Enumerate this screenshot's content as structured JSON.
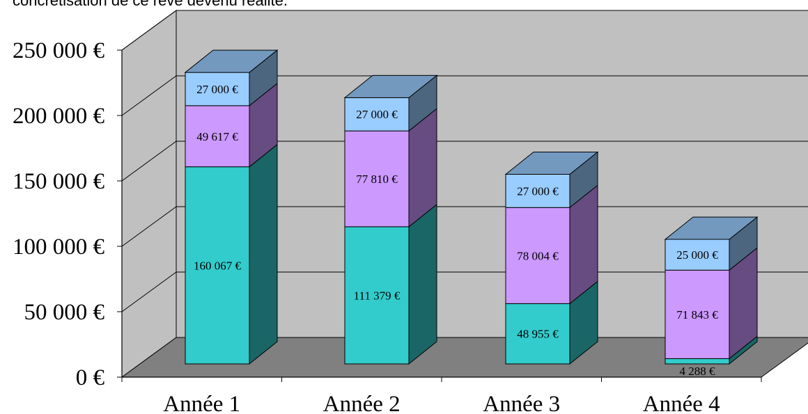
{
  "caption": "concrétisation de ce rêve devenu réalité.",
  "chart_data": {
    "type": "bar",
    "stacked": true,
    "style": "3d",
    "categories": [
      "Année 1",
      "Année 2",
      "Année 3",
      "Année 4"
    ],
    "series": [
      {
        "values": [
          160067,
          111379,
          48955,
          4288
        ],
        "labels": [
          "160 067 €",
          "111 379 €",
          "48 955 €",
          "4 288 €"
        ],
        "color": "#33CCCC",
        "side_color": "#1A6666",
        "top_color": "#2AA3A3"
      },
      {
        "values": [
          49617,
          77810,
          78004,
          71843
        ],
        "labels": [
          "49 617 €",
          "77 810 €",
          "78 004 €",
          "71 843 €"
        ],
        "color": "#CC99FF",
        "side_color": "#664C80",
        "top_color": "#A67ACC"
      },
      {
        "values": [
          27000,
          27000,
          27000,
          25000
        ],
        "labels": [
          "27 000 €",
          "27 000 €",
          "27 000 €",
          "25 000 €"
        ],
        "color": "#99CCFF",
        "side_color": "#4C6680",
        "top_color": "#7399BF"
      }
    ],
    "yticks": [
      0,
      50000,
      100000,
      150000,
      200000,
      250000
    ],
    "ytick_labels": [
      "0 €",
      "50 000 €",
      "100 000 €",
      "150 000 €",
      "200 000 €",
      "250 000 €"
    ],
    "ylim": [
      0,
      250000
    ],
    "grid": true,
    "legend": "none",
    "wall_color": "#C0C0C0",
    "floor_color": "#808080"
  }
}
